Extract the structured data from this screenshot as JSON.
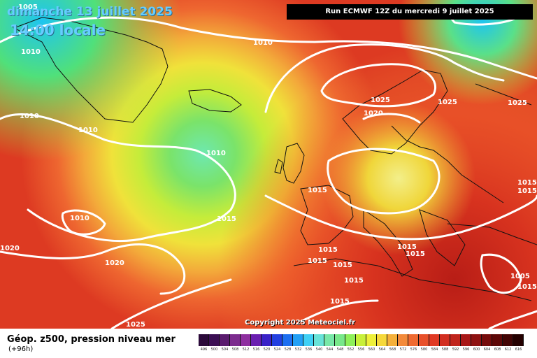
{
  "header": {
    "date_line": "dimanche 13 juillet 2025",
    "time_line": "14:00 locale",
    "run_info": "Run ECMWF 12Z du mercredi 9 juillet 2025"
  },
  "footer": {
    "title": "Géop. z500, pression niveau mer",
    "subtitle": "(+96h)",
    "copyright": "Copyright 2025 Meteociel.fr"
  },
  "legend": {
    "labels": [
      "496",
      "500",
      "504",
      "508",
      "512",
      "516",
      "520",
      "524",
      "528",
      "532",
      "536",
      "540",
      "544",
      "548",
      "552",
      "556",
      "560",
      "564",
      "568",
      "572",
      "576",
      "580",
      "584",
      "588",
      "592",
      "596",
      "600",
      "604",
      "608",
      "612",
      "616"
    ],
    "colors": [
      "#2b0a3a",
      "#3b0f53",
      "#5a1b6e",
      "#7c2b8e",
      "#8e2f9f",
      "#6a1fb0",
      "#3a22c8",
      "#2340e0",
      "#1d6ff0",
      "#22a0f5",
      "#3fd0f5",
      "#68e3d8",
      "#78e8a8",
      "#78e88a",
      "#8ef05a",
      "#c8f03a",
      "#eef03a",
      "#f6d83a",
      "#f5b03a",
      "#f38a3a",
      "#ef6a30",
      "#e8502a",
      "#e03a24",
      "#d22e20",
      "#c0241c",
      "#a81818",
      "#8e1212",
      "#760c0c",
      "#5e0808",
      "#420404",
      "#240000"
    ]
  },
  "isobars": [
    {
      "label": "1005"
    },
    {
      "label": "1010"
    },
    {
      "label": "1010"
    },
    {
      "label": "1010"
    },
    {
      "label": "1010"
    },
    {
      "label": "1010"
    },
    {
      "label": "1010"
    },
    {
      "label": "1015"
    },
    {
      "label": "1015"
    },
    {
      "label": "1015"
    },
    {
      "label": "1015"
    },
    {
      "label": "1015"
    },
    {
      "label": "1015"
    },
    {
      "label": "1015"
    },
    {
      "label": "1015"
    },
    {
      "label": "1015"
    },
    {
      "label": "1015"
    },
    {
      "label": "1015"
    },
    {
      "label": "1015"
    },
    {
      "label": "1020"
    },
    {
      "label": "1020"
    },
    {
      "label": "1020"
    },
    {
      "label": "1025"
    },
    {
      "label": "1025"
    },
    {
      "label": "1025"
    },
    {
      "label": "1025"
    },
    {
      "label": "1005"
    }
  ]
}
